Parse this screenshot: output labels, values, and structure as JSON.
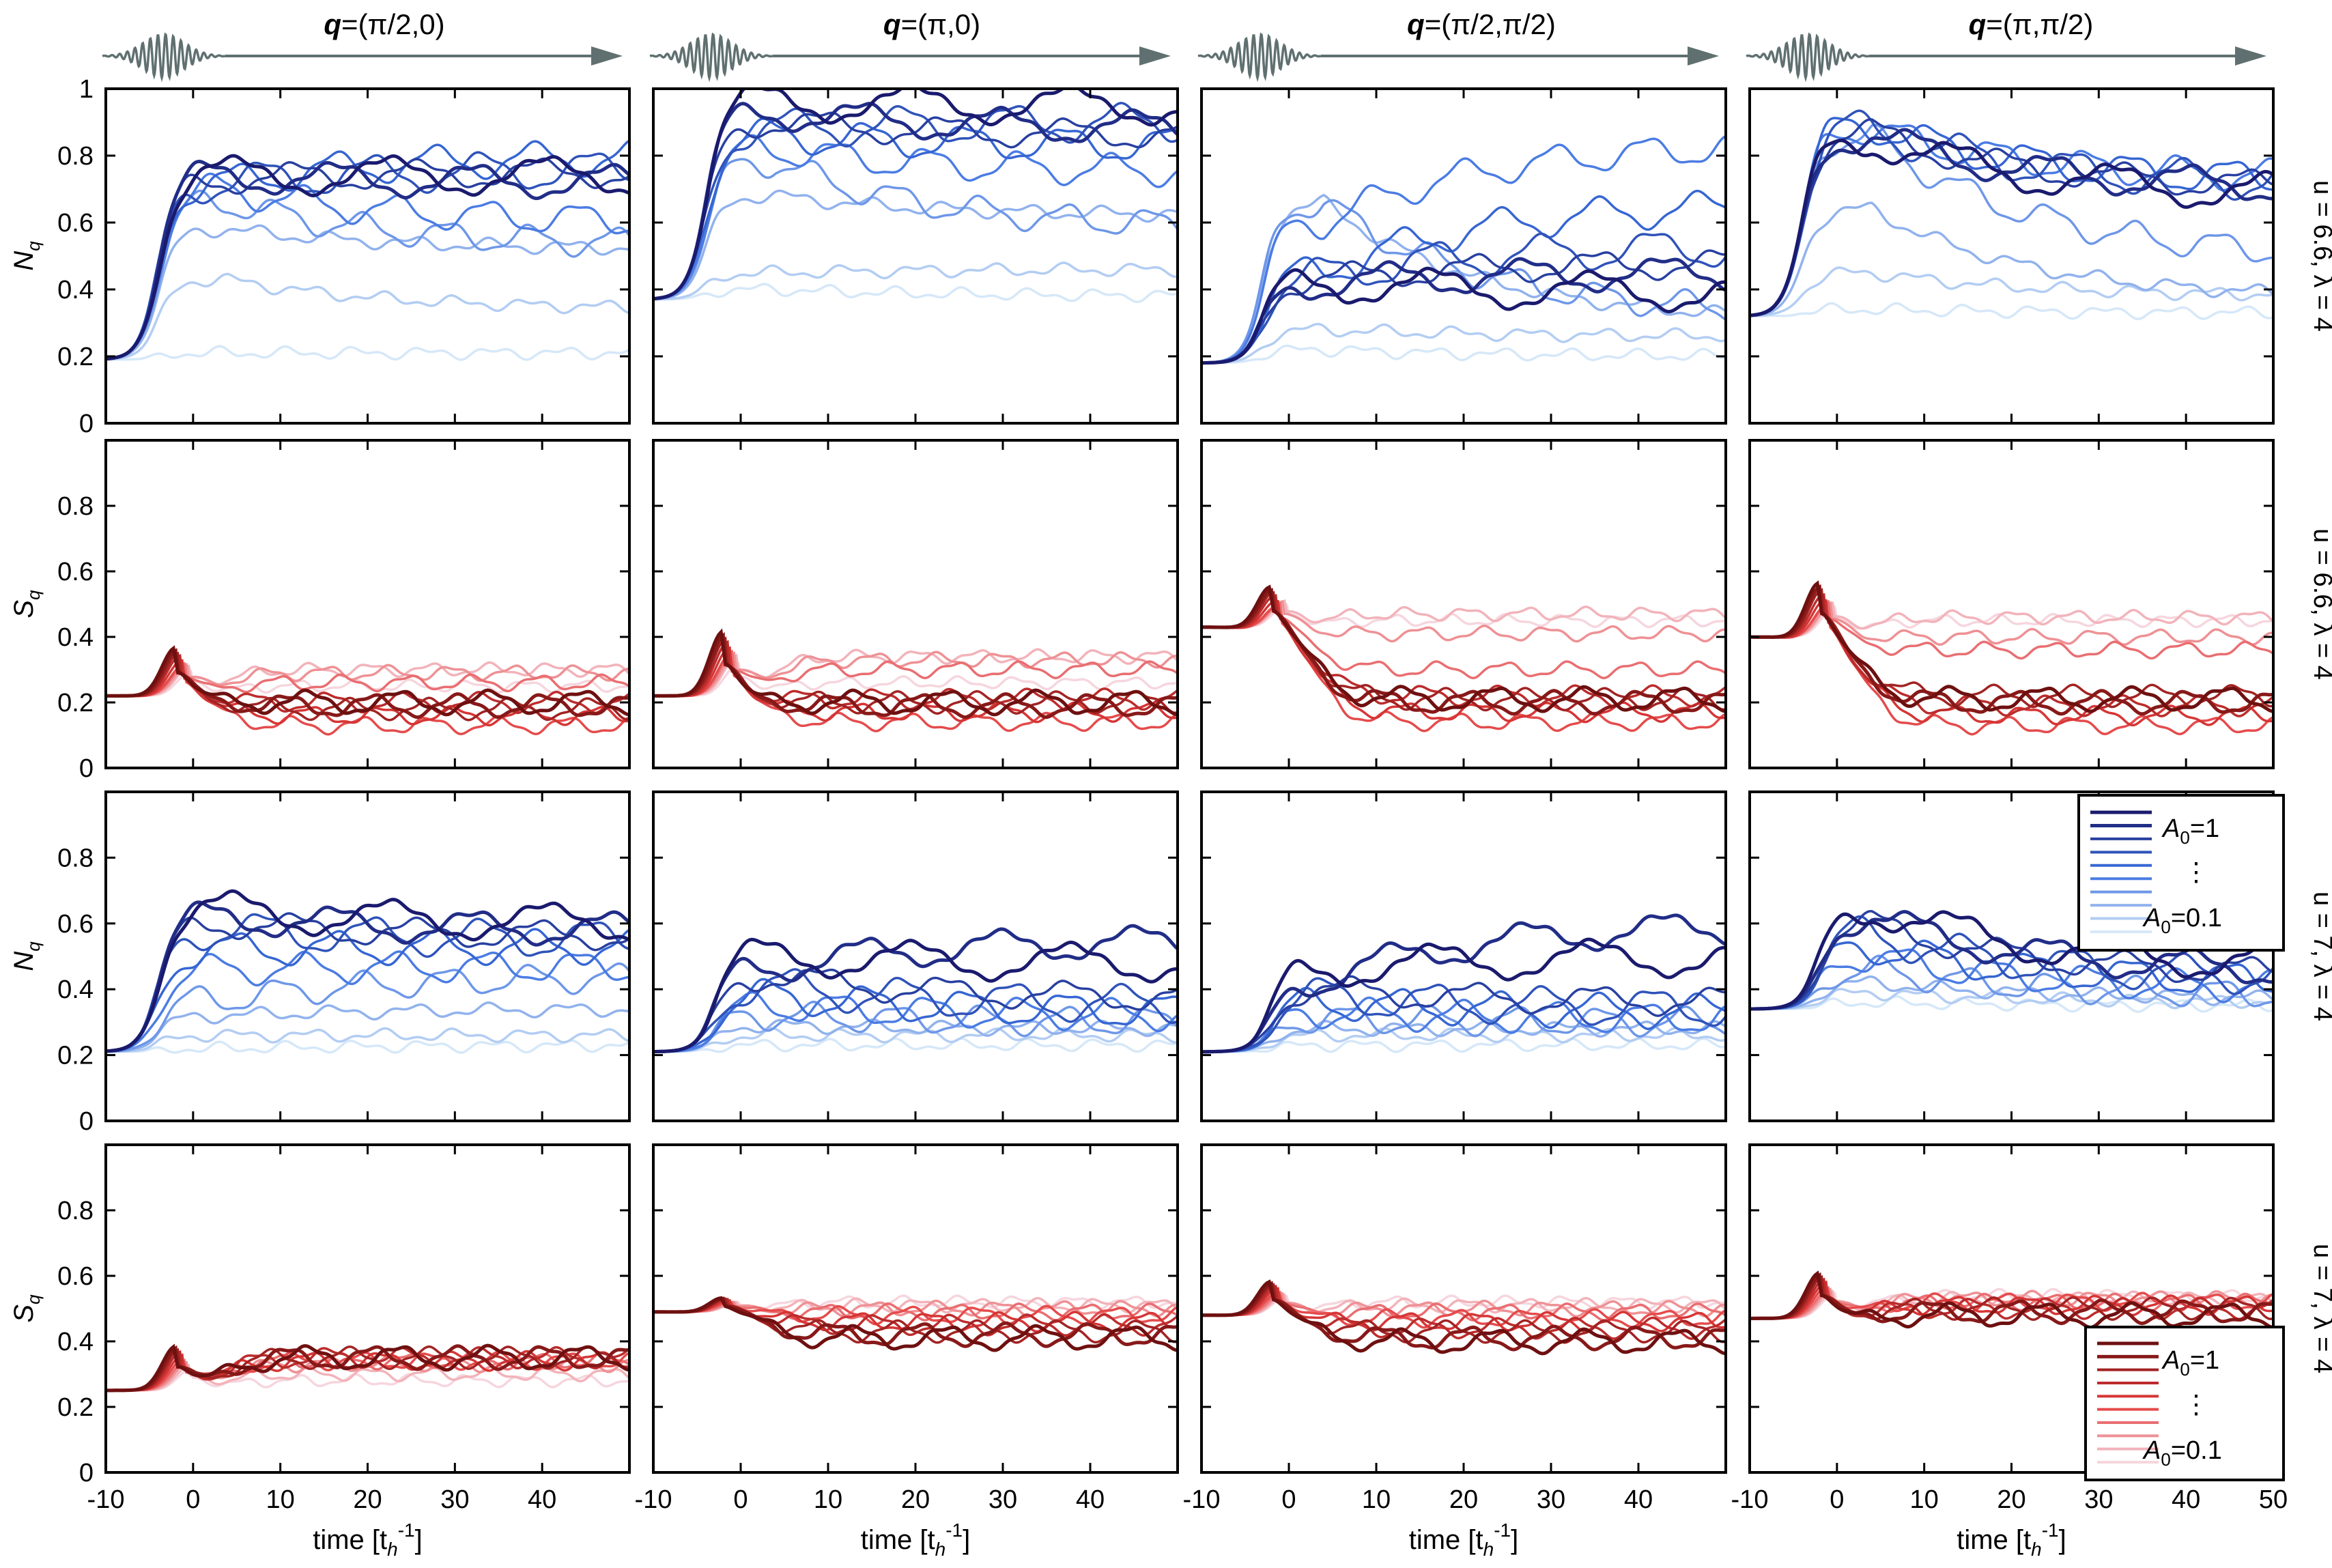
{
  "figure": {
    "column_titles": [
      {
        "bold": "q",
        "rest": "=(π/2,0)"
      },
      {
        "bold": "q",
        "rest": "=(π,0)"
      },
      {
        "bold": "q",
        "rest": "=(π/2,π/2)"
      },
      {
        "bold": "q",
        "rest": "=(π,π/2)"
      }
    ],
    "row_labels": [
      "u = 6.6, λ = 4",
      "u = 6.6, λ = 4",
      "u = 7, λ = 4",
      "u = 7, λ = 4"
    ],
    "y_axis_titles": [
      {
        "main": "N",
        "sub": "q"
      },
      {
        "main": "S",
        "sub": "q"
      },
      {
        "main": "N",
        "sub": "q"
      },
      {
        "main": "S",
        "sub": "q"
      }
    ],
    "x_axis_title": {
      "main": "time [t",
      "sub": "h",
      "sup": "-1",
      "close": "]"
    },
    "x_ticks": [
      -10,
      0,
      10,
      20,
      30,
      40,
      50
    ],
    "x_tick_labels_inner": [
      "-10",
      "0",
      "10",
      "20",
      "30",
      "40"
    ],
    "x_tick_labels_last": [
      "-10",
      "0",
      "10",
      "20",
      "30",
      "40",
      "50"
    ],
    "y_ticks_top": [
      "0",
      "0.2",
      "0.4",
      "0.6",
      "0.8",
      "1"
    ],
    "y_ticks_other": [
      "0",
      "0.2",
      "0.4",
      "0.6",
      "0.8"
    ],
    "legend_blue": {
      "top": "A",
      "top_sub": "0",
      "top_val": "=1",
      "dots": "⋮",
      "bottom": "A",
      "bottom_sub": "0",
      "bottom_val": "=0.1"
    },
    "legend_red": {
      "top": "A",
      "top_sub": "0",
      "top_val": "=1",
      "dots": "⋮",
      "bottom": "A",
      "bottom_sub": "0",
      "bottom_val": "=0.1"
    },
    "colors": {
      "blue_dark": "#1a1a6e",
      "blue_mid": "#3a6fe0",
      "blue_light": "#d6e8f8",
      "red_dark": "#6e1010",
      "red_mid": "#e33a3a",
      "red_light": "#f6d6de",
      "pulse": "#607070",
      "axis": "#000000"
    }
  },
  "chart_data": {
    "type": "line",
    "xlabel": "time [t_h^-1]",
    "xlim": [
      -10,
      50
    ],
    "amplitudes": [
      1.0,
      0.9,
      0.8,
      0.7,
      0.6,
      0.5,
      0.4,
      0.3,
      0.2,
      0.1
    ],
    "note": "Each panel has 10 curves, one per A0 from 1 (darkest) to 0.1 (lightest). Values are approximate readings of initial value, transient peak and late-time plateau.",
    "panels": [
      {
        "row": 0,
        "col": 0,
        "quantity": "N_q",
        "q": "(π/2,0)",
        "model": "u=6.6, λ=4",
        "ylim": [
          0,
          1
        ],
        "initial": 0.19,
        "rise_time": -4,
        "peak": [
          0.74,
          0.74,
          0.73,
          0.72,
          0.72,
          0.7,
          0.66,
          0.58,
          0.43,
          0.21
        ],
        "late": [
          0.74,
          0.72,
          0.75,
          0.76,
          0.8,
          0.6,
          0.53,
          0.52,
          0.34,
          0.21
        ]
      },
      {
        "row": 0,
        "col": 1,
        "quantity": "N_q",
        "q": "(π,0)",
        "model": "u=6.6, λ=4",
        "ylim": [
          0,
          1
        ],
        "initial": 0.37,
        "rise_time": -4,
        "peak": [
          0.96,
          0.93,
          0.9,
          0.88,
          0.86,
          0.82,
          0.78,
          0.68,
          0.45,
          0.4
        ],
        "late": [
          0.95,
          0.88,
          0.86,
          0.9,
          0.83,
          0.75,
          0.58,
          0.62,
          0.46,
          0.38
        ]
      },
      {
        "row": 0,
        "col": 2,
        "quantity": "N_q",
        "q": "(π/2,π/2)",
        "model": "u=6.6, λ=4",
        "ylim": [
          0,
          1
        ],
        "initial": 0.18,
        "rise_time": -3,
        "peak": [
          0.42,
          0.42,
          0.43,
          0.44,
          0.45,
          0.6,
          0.66,
          0.66,
          0.28,
          0.22
        ],
        "late": [
          0.39,
          0.45,
          0.48,
          0.53,
          0.66,
          0.84,
          0.32,
          0.3,
          0.26,
          0.2
        ]
      },
      {
        "row": 0,
        "col": 3,
        "quantity": "N_q",
        "q": "(π,π/2)",
        "model": "u=6.6, λ=4",
        "ylim": [
          0,
          1
        ],
        "initial": 0.32,
        "rise_time": -4,
        "peak": [
          0.85,
          0.86,
          0.87,
          0.88,
          0.89,
          0.88,
          0.86,
          0.64,
          0.45,
          0.34
        ],
        "late": [
          0.68,
          0.7,
          0.7,
          0.71,
          0.72,
          0.73,
          0.49,
          0.37,
          0.38,
          0.33
        ]
      },
      {
        "row": 1,
        "col": 0,
        "quantity": "S_q",
        "q": "(π/2,0)",
        "model": "u=6.6, λ=4",
        "ylim": [
          0,
          1
        ],
        "initial": 0.22,
        "peak": 0.37,
        "late": [
          0.2,
          0.19,
          0.18,
          0.2,
          0.16,
          0.13,
          0.26,
          0.29,
          0.3,
          0.25
        ]
      },
      {
        "row": 1,
        "col": 1,
        "quantity": "S_q",
        "q": "(π,0)",
        "model": "u=6.6, λ=4",
        "ylim": [
          0,
          1
        ],
        "initial": 0.22,
        "peak": 0.42,
        "late": [
          0.2,
          0.19,
          0.2,
          0.21,
          0.17,
          0.14,
          0.3,
          0.33,
          0.34,
          0.26
        ]
      },
      {
        "row": 1,
        "col": 2,
        "quantity": "S_q",
        "q": "(π/2,π/2)",
        "model": "u=6.6, λ=4",
        "ylim": [
          0,
          1
        ],
        "initial": 0.43,
        "peak": 0.57,
        "late": [
          0.21,
          0.2,
          0.21,
          0.22,
          0.17,
          0.14,
          0.3,
          0.41,
          0.47,
          0.45
        ]
      },
      {
        "row": 1,
        "col": 3,
        "quantity": "S_q",
        "q": "(π,π/2)",
        "model": "u=6.6, λ=4",
        "ylim": [
          0,
          1
        ],
        "initial": 0.4,
        "peak": 0.58,
        "late": [
          0.21,
          0.2,
          0.22,
          0.19,
          0.16,
          0.13,
          0.36,
          0.4,
          0.46,
          0.45
        ]
      },
      {
        "row": 2,
        "col": 0,
        "quantity": "N_q",
        "q": "(π/2,0)",
        "model": "u=7, λ=4",
        "ylim": [
          0,
          1
        ],
        "initial": 0.21,
        "rise_time": -4,
        "peak": [
          0.64,
          0.62,
          0.6,
          0.58,
          0.52,
          0.46,
          0.37,
          0.32,
          0.26,
          0.22
        ],
        "late": [
          0.6,
          0.58,
          0.56,
          0.55,
          0.53,
          0.47,
          0.44,
          0.34,
          0.26,
          0.23
        ]
      },
      {
        "row": 2,
        "col": 1,
        "quantity": "N_q",
        "q": "(π,0)",
        "model": "u=7, λ=4",
        "ylim": [
          0,
          1
        ],
        "initial": 0.21,
        "rise_time": -3,
        "peak": [
          0.5,
          0.47,
          0.44,
          0.41,
          0.38,
          0.35,
          0.32,
          0.29,
          0.26,
          0.23
        ],
        "late": [
          0.48,
          0.55,
          0.37,
          0.35,
          0.33,
          0.32,
          0.3,
          0.28,
          0.26,
          0.23
        ]
      },
      {
        "row": 2,
        "col": 2,
        "quantity": "N_q",
        "q": "(π/2,π/2)",
        "model": "u=7, λ=4",
        "ylim": [
          0,
          1
        ],
        "initial": 0.21,
        "rise_time": -2,
        "peak": [
          0.46,
          0.43,
          0.4,
          0.38,
          0.36,
          0.33,
          0.31,
          0.28,
          0.26,
          0.23
        ],
        "late": [
          0.5,
          0.6,
          0.36,
          0.34,
          0.33,
          0.31,
          0.3,
          0.28,
          0.26,
          0.23
        ]
      },
      {
        "row": 2,
        "col": 3,
        "quantity": "N_q",
        "q": "(π,π/2)",
        "model": "u=7, λ=4",
        "ylim": [
          0,
          1
        ],
        "initial": 0.34,
        "rise_time": -2,
        "peak": [
          0.65,
          0.62,
          0.6,
          0.57,
          0.53,
          0.5,
          0.46,
          0.42,
          0.39,
          0.36
        ],
        "late": [
          0.47,
          0.45,
          0.44,
          0.43,
          0.42,
          0.4,
          0.38,
          0.37,
          0.36,
          0.35
        ]
      },
      {
        "row": 3,
        "col": 0,
        "quantity": "S_q",
        "q": "(π/2,0)",
        "model": "u=7, λ=4",
        "ylim": [
          0,
          1
        ],
        "initial": 0.25,
        "peak": 0.38,
        "late": [
          0.35,
          0.35,
          0.35,
          0.35,
          0.34,
          0.34,
          0.34,
          0.33,
          0.3,
          0.28
        ]
      },
      {
        "row": 3,
        "col": 1,
        "quantity": "S_q",
        "q": "(π,0)",
        "model": "u=7, λ=4",
        "ylim": [
          0,
          1
        ],
        "initial": 0.49,
        "peak": 0.54,
        "late": [
          0.41,
          0.42,
          0.43,
          0.45,
          0.46,
          0.48,
          0.49,
          0.5,
          0.51,
          0.52
        ]
      },
      {
        "row": 3,
        "col": 2,
        "quantity": "S_q",
        "q": "(π/2,π/2)",
        "model": "u=7, λ=4",
        "ylim": [
          0,
          1
        ],
        "initial": 0.48,
        "peak": 0.59,
        "late": [
          0.4,
          0.41,
          0.43,
          0.44,
          0.46,
          0.47,
          0.49,
          0.5,
          0.51,
          0.52
        ]
      },
      {
        "row": 3,
        "col": 3,
        "quantity": "S_q",
        "q": "(π,π/2)",
        "model": "u=7, λ=4",
        "ylim": [
          0,
          1
        ],
        "initial": 0.47,
        "peak": 0.61,
        "late": [
          0.48,
          0.49,
          0.5,
          0.5,
          0.51,
          0.52,
          0.52,
          0.53,
          0.53,
          0.54
        ]
      }
    ]
  }
}
